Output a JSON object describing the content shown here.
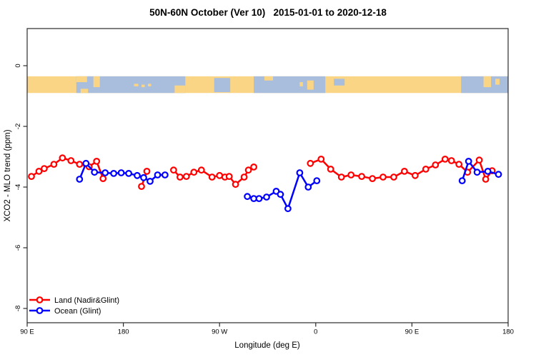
{
  "title": "50N-60N October (Ver 10)   2015-01-01 to 2020-12-18",
  "chart_data": {
    "type": "line",
    "title": "50N-60N October (Ver 10)   2015-01-01 to 2020-12-18",
    "xlabel": "Longitude (deg E)",
    "ylabel": "XCO2 - MLO trend (ppm)",
    "xlim": [
      90,
      540
    ],
    "ylim": [
      -8.5,
      1.2
    ],
    "grid": false,
    "x_ticks": [
      {
        "value": 90,
        "label": "90 E"
      },
      {
        "value": 180,
        "label": "180"
      },
      {
        "value": 270,
        "label": "90 W"
      },
      {
        "value": 360,
        "label": "0"
      },
      {
        "value": 450,
        "label": "90 E"
      },
      {
        "value": 540,
        "label": "180"
      }
    ],
    "y_ticks": [
      {
        "value": 0,
        "label": "0"
      },
      {
        "value": -2,
        "label": "-2"
      },
      {
        "value": -4,
        "label": "-4"
      },
      {
        "value": -6,
        "label": "-6"
      },
      {
        "value": -8,
        "label": "-8"
      }
    ],
    "legend": {
      "position": "bottom-left",
      "entries": [
        {
          "label": "Land (Nadir&Glint)",
          "color": "#ff0000"
        },
        {
          "label": "Ocean (Glint)",
          "color": "#0000ff"
        }
      ]
    },
    "series": [
      {
        "name": "Land (Nadir&Glint)",
        "color": "#ff0000",
        "marker": "open-circle",
        "segments": [
          [
            [
              94,
              -3.65
            ],
            [
              101,
              -3.48
            ],
            [
              106,
              -3.39
            ],
            [
              115,
              -3.25
            ],
            [
              123,
              -3.04
            ],
            [
              131,
              -3.13
            ],
            [
              139,
              -3.25
            ],
            [
              148,
              -3.33
            ],
            [
              155,
              -3.15
            ],
            [
              161,
              -3.72
            ]
          ],
          [
            [
              197,
              -3.98
            ],
            [
              202,
              -3.48
            ]
          ],
          [
            [
              227,
              -3.44
            ],
            [
              233,
              -3.67
            ],
            [
              239,
              -3.65
            ],
            [
              246,
              -3.51
            ],
            [
              253,
              -3.44
            ],
            [
              263,
              -3.67
            ],
            [
              270,
              -3.62
            ],
            [
              275,
              -3.67
            ],
            [
              279,
              -3.65
            ],
            [
              285,
              -3.91
            ],
            [
              293,
              -3.67
            ],
            [
              297,
              -3.44
            ],
            [
              302,
              -3.34
            ]
          ],
          [
            [
              355,
              -3.22
            ],
            [
              365,
              -3.08
            ],
            [
              374,
              -3.41
            ],
            [
              384,
              -3.67
            ],
            [
              393,
              -3.6
            ],
            [
              403,
              -3.65
            ],
            [
              413,
              -3.72
            ],
            [
              423,
              -3.67
            ],
            [
              433,
              -3.67
            ],
            [
              443,
              -3.48
            ],
            [
              453,
              -3.62
            ],
            [
              463,
              -3.41
            ],
            [
              472,
              -3.27
            ],
            [
              481,
              -3.08
            ],
            [
              487,
              -3.13
            ],
            [
              494,
              -3.25
            ],
            [
              502,
              -3.51
            ],
            [
              513,
              -3.11
            ],
            [
              519,
              -3.74
            ],
            [
              525,
              -3.46
            ]
          ]
        ]
      },
      {
        "name": "Ocean (Glint)",
        "color": "#0000ff",
        "marker": "open-circle",
        "segments": [
          [
            [
              139,
              -3.74
            ],
            [
              145,
              -3.22
            ],
            [
              153,
              -3.51
            ],
            [
              163,
              -3.53
            ],
            [
              171,
              -3.55
            ],
            [
              178,
              -3.53
            ],
            [
              185,
              -3.55
            ],
            [
              193,
              -3.62
            ],
            [
              199,
              -3.69
            ],
            [
              205,
              -3.81
            ],
            [
              212,
              -3.6
            ],
            [
              219,
              -3.6
            ]
          ],
          [
            [
              296,
              -4.31
            ],
            [
              302,
              -4.38
            ],
            [
              307,
              -4.38
            ],
            [
              314,
              -4.33
            ],
            [
              323,
              -4.14
            ],
            [
              327,
              -4.24
            ],
            [
              334,
              -4.71
            ],
            [
              345,
              -3.53
            ],
            [
              353,
              -4.0
            ],
            [
              361,
              -3.79
            ]
          ],
          [
            [
              497,
              -3.79
            ],
            [
              503,
              -3.15
            ],
            [
              511,
              -3.51
            ],
            [
              521,
              -3.48
            ],
            [
              531,
              -3.58
            ]
          ]
        ]
      }
    ],
    "map_strip": {
      "description": "coastline band for 50N-60N latitude zone",
      "y_range_ppm": [
        -0.35,
        -0.9
      ],
      "land_color": "#fbd586",
      "ocean_color": "#a9bedc",
      "ocean_bands": [
        {
          "from": 136,
          "to": 238,
          "top": 0,
          "bottom": 1
        },
        {
          "from": 265,
          "to": 280,
          "top": 0.1,
          "bottom": 0.95
        },
        {
          "from": 302,
          "to": 369,
          "top": 0,
          "bottom": 1
        },
        {
          "from": 377,
          "to": 387,
          "top": 0.15,
          "bottom": 0.55
        },
        {
          "from": 496,
          "to": 540,
          "top": 0,
          "bottom": 1
        }
      ],
      "land_patches": [
        {
          "from": 136,
          "to": 146,
          "top": 0,
          "bottom": 0.35
        },
        {
          "from": 140,
          "to": 147,
          "top": 0.75,
          "bottom": 1
        },
        {
          "from": 152,
          "to": 158,
          "top": 0,
          "bottom": 0.65
        },
        {
          "from": 190,
          "to": 194,
          "top": 0.45,
          "bottom": 0.6
        },
        {
          "from": 197,
          "to": 200,
          "top": 0.5,
          "bottom": 0.65
        },
        {
          "from": 203,
          "to": 206,
          "top": 0.45,
          "bottom": 0.6
        },
        {
          "from": 228,
          "to": 238,
          "top": 0.55,
          "bottom": 1
        },
        {
          "from": 312,
          "to": 320,
          "top": 0,
          "bottom": 0.25
        },
        {
          "from": 345,
          "to": 348,
          "top": 0.35,
          "bottom": 0.6
        },
        {
          "from": 352,
          "to": 358,
          "top": 0.25,
          "bottom": 0.8
        },
        {
          "from": 517,
          "to": 524,
          "top": 0,
          "bottom": 0.65
        },
        {
          "from": 528,
          "to": 532,
          "top": 0.15,
          "bottom": 0.5
        }
      ]
    }
  }
}
